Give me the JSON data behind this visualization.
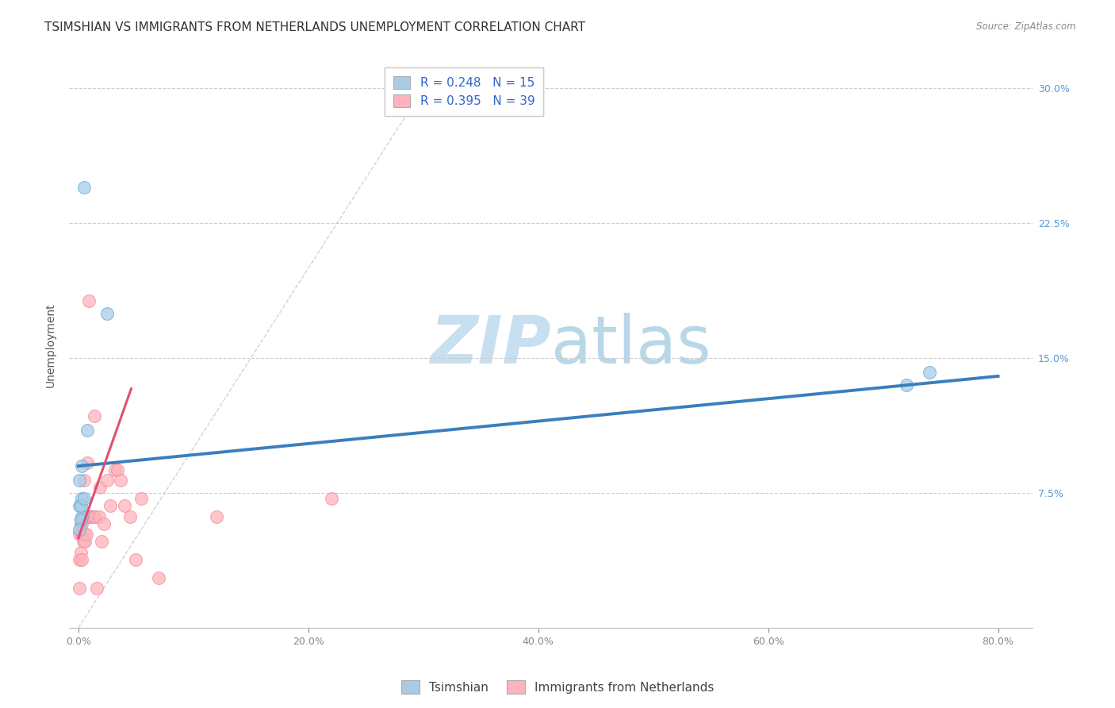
{
  "title": "TSIMSHIAN VS IMMIGRANTS FROM NETHERLANDS UNEMPLOYMENT CORRELATION CHART",
  "source": "Source: ZipAtlas.com",
  "xlabel_ticks": [
    "0.0%",
    "20.0%",
    "40.0%",
    "60.0%",
    "80.0%"
  ],
  "xlabel_tick_vals": [
    0.0,
    0.2,
    0.4,
    0.6,
    0.8
  ],
  "ylabel_ticks": [
    "7.5%",
    "15.0%",
    "22.5%",
    "30.0%"
  ],
  "ylabel_tick_vals": [
    0.075,
    0.15,
    0.225,
    0.3
  ],
  "xmin": -0.008,
  "xmax": 0.83,
  "ymin": 0.0,
  "ymax": 0.315,
  "watermark_zip": "ZIP",
  "watermark_atlas": "atlas",
  "legend_blue_label": "R = 0.248   N = 15",
  "legend_pink_label": "R = 0.395   N = 39",
  "legend_bottom_blue": "Tsimshian",
  "legend_bottom_pink": "Immigrants from Netherlands",
  "blue_scatter_x": [
    0.003,
    0.005,
    0.001,
    0.001,
    0.003,
    0.002,
    0.003,
    0.008,
    0.002,
    0.025,
    0.005,
    0.72,
    0.74,
    0.002,
    0.001
  ],
  "blue_scatter_y": [
    0.09,
    0.245,
    0.082,
    0.068,
    0.072,
    0.06,
    0.062,
    0.11,
    0.068,
    0.175,
    0.072,
    0.135,
    0.142,
    0.06,
    0.055
  ],
  "pink_scatter_x": [
    0.001,
    0.001,
    0.001,
    0.002,
    0.002,
    0.003,
    0.003,
    0.003,
    0.004,
    0.004,
    0.005,
    0.005,
    0.006,
    0.007,
    0.008,
    0.008,
    0.009,
    0.01,
    0.012,
    0.013,
    0.014,
    0.015,
    0.016,
    0.018,
    0.019,
    0.02,
    0.022,
    0.025,
    0.028,
    0.032,
    0.034,
    0.037,
    0.04,
    0.045,
    0.05,
    0.055,
    0.07,
    0.12,
    0.22
  ],
  "pink_scatter_y": [
    0.052,
    0.038,
    0.022,
    0.058,
    0.042,
    0.058,
    0.052,
    0.038,
    0.062,
    0.048,
    0.082,
    0.052,
    0.048,
    0.052,
    0.062,
    0.092,
    0.182,
    0.062,
    0.062,
    0.062,
    0.118,
    0.062,
    0.022,
    0.062,
    0.078,
    0.048,
    0.058,
    0.082,
    0.068,
    0.088,
    0.088,
    0.082,
    0.068,
    0.062,
    0.038,
    0.072,
    0.028,
    0.062,
    0.072
  ],
  "blue_line_x": [
    0.0,
    0.8
  ],
  "blue_line_y": [
    0.09,
    0.14
  ],
  "pink_line_x": [
    0.0,
    0.046
  ],
  "pink_line_y": [
    0.05,
    0.133
  ],
  "diag_line_x": [
    0.0,
    0.3
  ],
  "diag_line_y": [
    0.0,
    0.3
  ],
  "blue_color": "#a8cce8",
  "blue_edge_color": "#6baed6",
  "blue_line_color": "#3a7ebf",
  "pink_color": "#ffb3ba",
  "pink_edge_color": "#f48ca0",
  "pink_line_color": "#e05070",
  "diag_color": "#c8c8c8",
  "scatter_size": 130,
  "title_fontsize": 11,
  "axis_label_fontsize": 10,
  "tick_fontsize": 9,
  "legend_fontsize": 11,
  "watermark_zip_color": "#c8dff0",
  "watermark_atlas_color": "#b8d8e8",
  "watermark_fontsize": 60
}
